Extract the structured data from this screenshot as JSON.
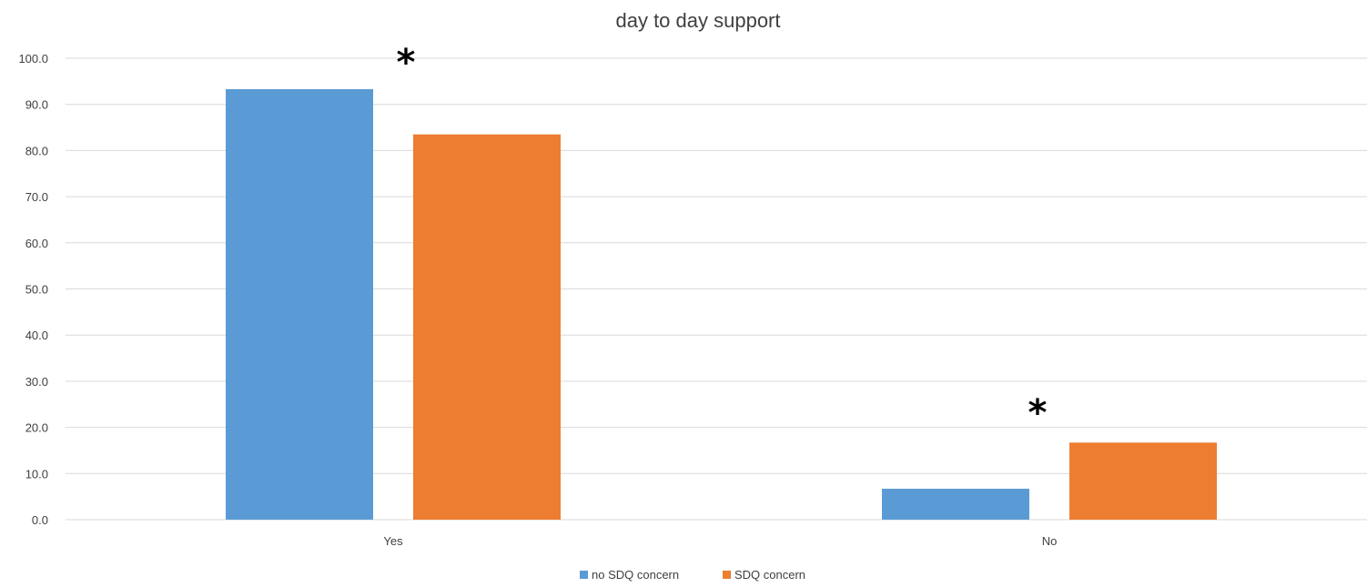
{
  "chart_data": {
    "type": "bar",
    "title": "day to day support",
    "xlabel": "",
    "ylabel": "",
    "categories": [
      "Yes",
      "No"
    ],
    "series": [
      {
        "name": "no SDQ concern",
        "color": "#5B9BD5",
        "values": [
          93.3,
          6.7
        ]
      },
      {
        "name": "SDQ concern",
        "color": "#ED7D31",
        "values": [
          83.5,
          16.7
        ]
      }
    ],
    "ylim": [
      0,
      100
    ],
    "yticks": [
      "0.0",
      "10.0",
      "20.0",
      "30.0",
      "40.0",
      "50.0",
      "60.0",
      "70.0",
      "80.0",
      "90.0",
      "100.0"
    ],
    "grid": true,
    "legend": "bottom",
    "annotations": [
      {
        "text": "*",
        "category": "Yes"
      },
      {
        "text": "*",
        "category": "No"
      }
    ]
  }
}
